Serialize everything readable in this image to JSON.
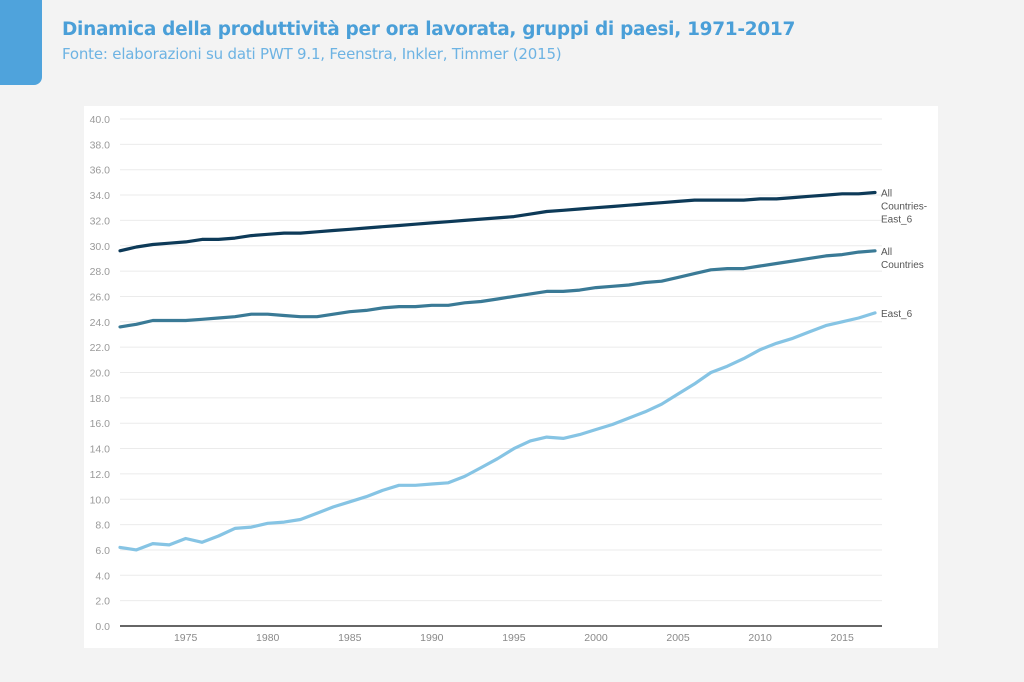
{
  "header": {
    "title": "Dinamica della produttività per ora lavorata, gruppi di paesi, 1971-2017",
    "subtitle": "Fonte: elaborazioni su dati PWT 9.1, Feenstra, Inkler, Timmer (2015)"
  },
  "chart_data": {
    "type": "line",
    "title": "Dinamica della produttività per ora lavorata, gruppi di paesi, 1971-2017",
    "subtitle": "Fonte: elaborazioni su dati PWT 9.1, Feenstra, Inkler, Timmer (2015)",
    "xlabel": "",
    "ylabel": "",
    "ylim": [
      0,
      40
    ],
    "xlim": [
      1971,
      2017
    ],
    "grid": true,
    "legend": "right-end inline labels",
    "y_ticks": [
      "0.0",
      "2.0",
      "4.0",
      "6.0",
      "8.0",
      "10.0",
      "12.0",
      "14.0",
      "16.0",
      "18.0",
      "20.0",
      "22.0",
      "24.0",
      "26.0",
      "28.0",
      "30.0",
      "32.0",
      "34.0",
      "36.0",
      "38.0",
      "40.0"
    ],
    "x_ticks": [
      "1975",
      "1980",
      "1985",
      "1990",
      "1995",
      "2000",
      "2005",
      "2010",
      "2015"
    ],
    "x": [
      1971,
      1972,
      1973,
      1974,
      1975,
      1976,
      1977,
      1978,
      1979,
      1980,
      1981,
      1982,
      1983,
      1984,
      1985,
      1986,
      1987,
      1988,
      1989,
      1990,
      1991,
      1992,
      1993,
      1994,
      1995,
      1996,
      1997,
      1998,
      1999,
      2000,
      2001,
      2002,
      2003,
      2004,
      2005,
      2006,
      2007,
      2008,
      2009,
      2010,
      2011,
      2012,
      2013,
      2014,
      2015,
      2016,
      2017
    ],
    "series": [
      {
        "name": "All Countries-East_6",
        "label_lines": [
          "All",
          "Countries-",
          "East_6"
        ],
        "color": "#0d3a58",
        "values": [
          29.6,
          29.9,
          30.1,
          30.2,
          30.3,
          30.5,
          30.5,
          30.6,
          30.8,
          30.9,
          31.0,
          31.0,
          31.1,
          31.2,
          31.3,
          31.4,
          31.5,
          31.6,
          31.7,
          31.8,
          31.9,
          32.0,
          32.1,
          32.2,
          32.3,
          32.5,
          32.7,
          32.8,
          32.9,
          33.0,
          33.1,
          33.2,
          33.3,
          33.4,
          33.5,
          33.6,
          33.6,
          33.6,
          33.6,
          33.7,
          33.7,
          33.8,
          33.9,
          34.0,
          34.1,
          34.1,
          34.2
        ]
      },
      {
        "name": "All Countries",
        "label_lines": [
          "All",
          "Countries"
        ],
        "color": "#3a7a96",
        "values": [
          23.6,
          23.8,
          24.1,
          24.1,
          24.1,
          24.2,
          24.3,
          24.4,
          24.6,
          24.6,
          24.5,
          24.4,
          24.4,
          24.6,
          24.8,
          24.9,
          25.1,
          25.2,
          25.2,
          25.3,
          25.3,
          25.5,
          25.6,
          25.8,
          26.0,
          26.2,
          26.4,
          26.4,
          26.5,
          26.7,
          26.8,
          26.9,
          27.1,
          27.2,
          27.5,
          27.8,
          28.1,
          28.2,
          28.2,
          28.4,
          28.6,
          28.8,
          29.0,
          29.2,
          29.3,
          29.5,
          29.6
        ]
      },
      {
        "name": "East_6",
        "label_lines": [
          "East_6"
        ],
        "color": "#86c4e4",
        "values": [
          6.2,
          6.0,
          6.5,
          6.4,
          6.9,
          6.6,
          7.1,
          7.7,
          7.8,
          8.1,
          8.2,
          8.4,
          8.9,
          9.4,
          9.8,
          10.2,
          10.7,
          11.1,
          11.1,
          11.2,
          11.3,
          11.8,
          12.5,
          13.2,
          14.0,
          14.6,
          14.9,
          14.8,
          15.1,
          15.5,
          15.9,
          16.4,
          16.9,
          17.5,
          18.3,
          19.1,
          20.0,
          20.5,
          21.1,
          21.8,
          22.3,
          22.7,
          23.2,
          23.7,
          24.0,
          24.3,
          24.7
        ]
      }
    ]
  }
}
